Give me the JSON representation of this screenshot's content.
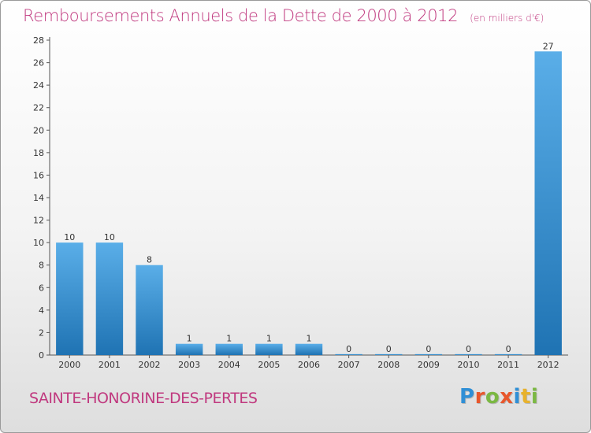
{
  "header": {
    "title": "Remboursements Annuels de la Dette de 2000 à 2012",
    "unit": "(en milliers d'€)"
  },
  "footer": {
    "commune": "SAINTE-HONORINE-DES-PERTES",
    "logo": [
      "P",
      "r",
      "o",
      "x",
      "i",
      "t",
      "i"
    ]
  },
  "colors": {
    "title": "#c0397f",
    "bar_top": "#5aaee8",
    "bar_bottom": "#1f73b3",
    "logo": [
      "#2f8fd6",
      "#e8572c",
      "#7bb843",
      "#e8572c",
      "#2f8fd6",
      "#e8b22c",
      "#7bb843"
    ]
  },
  "chart_data": {
    "type": "bar",
    "title": "Remboursements Annuels de la Dette de 2000 à 2012",
    "xlabel": "",
    "ylabel": "",
    "categories": [
      "2000",
      "2001",
      "2002",
      "2003",
      "2004",
      "2005",
      "2006",
      "2007",
      "2008",
      "2009",
      "2010",
      "2011",
      "2012"
    ],
    "values": [
      10,
      10,
      8,
      1,
      1,
      1,
      1,
      0,
      0,
      0,
      0,
      0,
      27
    ],
    "value_labels": [
      "10",
      "10",
      "8",
      "1",
      "1",
      "1",
      "1",
      "0",
      "0",
      "0",
      "0",
      "0",
      "27"
    ],
    "ylim": [
      0,
      28
    ],
    "yticks": [
      0,
      2,
      4,
      6,
      8,
      10,
      12,
      14,
      16,
      18,
      20,
      22,
      24,
      26,
      28
    ],
    "grid": false,
    "legend": "none"
  }
}
